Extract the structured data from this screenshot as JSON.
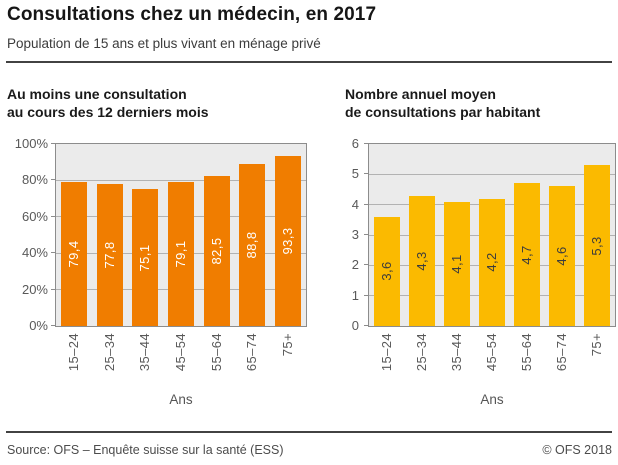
{
  "header": {
    "title": "Consultations chez un médecin, en 2017",
    "subtitle": "Population de 15 ans et plus vivant en ménage privé"
  },
  "chart_data": [
    {
      "type": "bar",
      "title": "Au moins une consultation au cours des 12 derniers mois",
      "title_lines": [
        "Au moins une consultation",
        "au cours des 12 derniers mois"
      ],
      "categories": [
        "15–24",
        "25–34",
        "35–44",
        "45–54",
        "55–64",
        "65–74",
        "75+"
      ],
      "values": [
        79.4,
        77.8,
        75.1,
        79.1,
        82.5,
        88.8,
        93.3
      ],
      "value_labels": [
        "79,4",
        "77,8",
        "75,1",
        "79,1",
        "82,5",
        "88,8",
        "93,3"
      ],
      "xlabel": "Ans",
      "ylabel": "",
      "ylim": [
        0,
        100
      ],
      "yticks": [
        0,
        20,
        40,
        60,
        80,
        100
      ],
      "ytick_labels": [
        "0%",
        "20%",
        "40%",
        "60%",
        "80%",
        "100%"
      ],
      "grid": true,
      "legend": null,
      "bar_color": "#f07d00",
      "value_label_color": "#ffffff"
    },
    {
      "type": "bar",
      "title": "Nombre annuel moyen de consultations par habitant",
      "title_lines": [
        "Nombre annuel moyen",
        "de consultations par habitant"
      ],
      "categories": [
        "15–24",
        "25–34",
        "35–44",
        "45–54",
        "55–64",
        "65–74",
        "75+"
      ],
      "values": [
        3.6,
        4.3,
        4.1,
        4.2,
        4.7,
        4.6,
        5.3
      ],
      "value_labels": [
        "3,6",
        "4,3",
        "4,1",
        "4,2",
        "4,7",
        "4,6",
        "5,3"
      ],
      "xlabel": "Ans",
      "ylabel": "",
      "ylim": [
        0,
        6
      ],
      "yticks": [
        0,
        1,
        2,
        3,
        4,
        5,
        6
      ],
      "ytick_labels": [
        "0",
        "1",
        "2",
        "3",
        "4",
        "5",
        "6"
      ],
      "grid": true,
      "legend": null,
      "bar_color": "#fbba00",
      "value_label_color": "#3c3c3c"
    }
  ],
  "footer": {
    "source": "Source: OFS – Enquête suisse sur la santé (ESS)",
    "copyright": "© OFS 2018"
  },
  "colors": {
    "plot_background": "#ebebeb",
    "gridline": "#b2b2b2",
    "plot_border": "#8c8c8c",
    "axis_text": "#595959",
    "rule": "#424242",
    "orange": "#f07d00",
    "yellow": "#fbba00"
  }
}
